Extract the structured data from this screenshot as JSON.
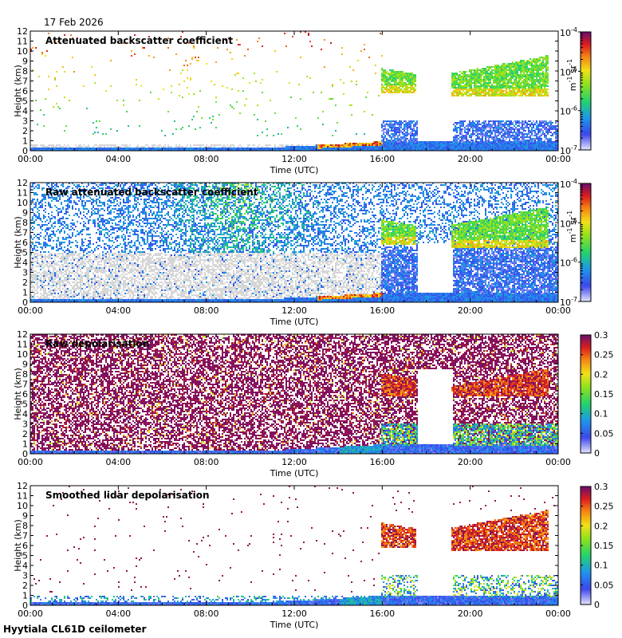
{
  "header": {
    "date": "17 Feb 2026",
    "footer": "Hyytiala CL61D ceilometer"
  },
  "colors": {
    "cloud_green": "#2fd02a",
    "cloud_yellow": "#d7e21b",
    "cloud_red": "#e03b14",
    "depol_purple": "#7a0f6a",
    "low_blue": "#1a22c8",
    "noise_gray": "#d2d2d2"
  },
  "chart_data": [
    {
      "type": "heatmap",
      "title": "Attenuated backscatter coefficient",
      "xlabel": "Time (UTC)",
      "ylabel": "Height (km)",
      "xticks": [
        "00:00",
        "04:00",
        "08:00",
        "12:00",
        "16:00",
        "20:00",
        "00:00"
      ],
      "xlim_hours": [
        0,
        24
      ],
      "yticks": [
        "0",
        "1",
        "2",
        "3",
        "4",
        "5",
        "6",
        "7",
        "8",
        "9",
        "10",
        "11",
        "12"
      ],
      "ylim_km": [
        0,
        12
      ],
      "colorbar": {
        "scale": "log",
        "ticks": [
          {
            "base": "10",
            "exp": "-4"
          },
          {
            "base": "10",
            "exp": "-5"
          },
          {
            "base": "10",
            "exp": "-6"
          },
          {
            "base": "10",
            "exp": "-7"
          }
        ],
        "unit_main": "m",
        "unit_exp1": "-1",
        "unit_mid": " sr",
        "unit_exp2": "-1"
      },
      "cloud_layers": [
        {
          "start_h": 16.0,
          "end_h": 17.6,
          "base_km": 5.8,
          "top_km": 8.2
        },
        {
          "start_h": 19.2,
          "end_h": 23.6,
          "base_km": 5.6,
          "top_km": 9.5
        }
      ]
    },
    {
      "type": "heatmap",
      "title": "Raw attenuated backscatter coefficient",
      "xlabel": "Time (UTC)",
      "ylabel": "Height (km)",
      "xticks": [
        "00:00",
        "04:00",
        "08:00",
        "12:00",
        "16:00",
        "20:00",
        "00:00"
      ],
      "xlim_hours": [
        0,
        24
      ],
      "yticks": [
        "0",
        "1",
        "2",
        "3",
        "4",
        "5",
        "6",
        "7",
        "8",
        "9",
        "10",
        "11",
        "12"
      ],
      "ylim_km": [
        0,
        12
      ],
      "colorbar": {
        "scale": "log",
        "ticks": [
          {
            "base": "10",
            "exp": "-4"
          },
          {
            "base": "10",
            "exp": "-5"
          },
          {
            "base": "10",
            "exp": "-6"
          },
          {
            "base": "10",
            "exp": "-7"
          }
        ],
        "unit_main": "m",
        "unit_exp1": "-1",
        "unit_mid": " sr",
        "unit_exp2": "-1"
      },
      "cloud_layers": [
        {
          "start_h": 16.0,
          "end_h": 17.6,
          "base_km": 5.8,
          "top_km": 8.2
        },
        {
          "start_h": 19.2,
          "end_h": 23.6,
          "base_km": 5.6,
          "top_km": 9.5
        }
      ]
    },
    {
      "type": "heatmap",
      "title": "Raw depolarisation",
      "xlabel": "Time (UTC)",
      "ylabel": "Height (km)",
      "xticks": [
        "00:00",
        "04:00",
        "08:00",
        "12:00",
        "16:00",
        "20:00",
        "00:00"
      ],
      "xlim_hours": [
        0,
        24
      ],
      "yticks": [
        "0",
        "1",
        "2",
        "3",
        "4",
        "5",
        "6",
        "7",
        "8",
        "9",
        "10",
        "11",
        "12"
      ],
      "ylim_km": [
        0,
        12
      ],
      "colorbar": {
        "scale": "linear",
        "vmin": 0,
        "vmax": 0.3,
        "ticks": [
          "0.3",
          "0.25",
          "0.2",
          "0.15",
          "0.1",
          "0.05",
          "0"
        ]
      },
      "cloud_layers": [
        {
          "start_h": 16.0,
          "end_h": 17.6,
          "base_km": 5.8,
          "top_km": 8.0
        },
        {
          "start_h": 19.2,
          "end_h": 23.6,
          "base_km": 5.8,
          "top_km": 8.5
        }
      ]
    },
    {
      "type": "heatmap",
      "title": "Smoothed lidar depolarisation",
      "xlabel": "Time (UTC)",
      "ylabel": "Height (km)",
      "xticks": [
        "00:00",
        "04:00",
        "08:00",
        "12:00",
        "16:00",
        "20:00",
        "00:00"
      ],
      "xlim_hours": [
        0,
        24
      ],
      "yticks": [
        "0",
        "1",
        "2",
        "3",
        "4",
        "5",
        "6",
        "7",
        "8",
        "9",
        "10",
        "11",
        "12"
      ],
      "ylim_km": [
        0,
        12
      ],
      "colorbar": {
        "scale": "linear",
        "vmin": 0,
        "vmax": 0.3,
        "ticks": [
          "0.3",
          "0.25",
          "0.2",
          "0.15",
          "0.1",
          "0.05",
          "0"
        ]
      },
      "cloud_layers": [
        {
          "start_h": 16.0,
          "end_h": 17.6,
          "base_km": 5.8,
          "top_km": 8.2
        },
        {
          "start_h": 19.2,
          "end_h": 23.6,
          "base_km": 5.6,
          "top_km": 9.5
        }
      ]
    }
  ]
}
